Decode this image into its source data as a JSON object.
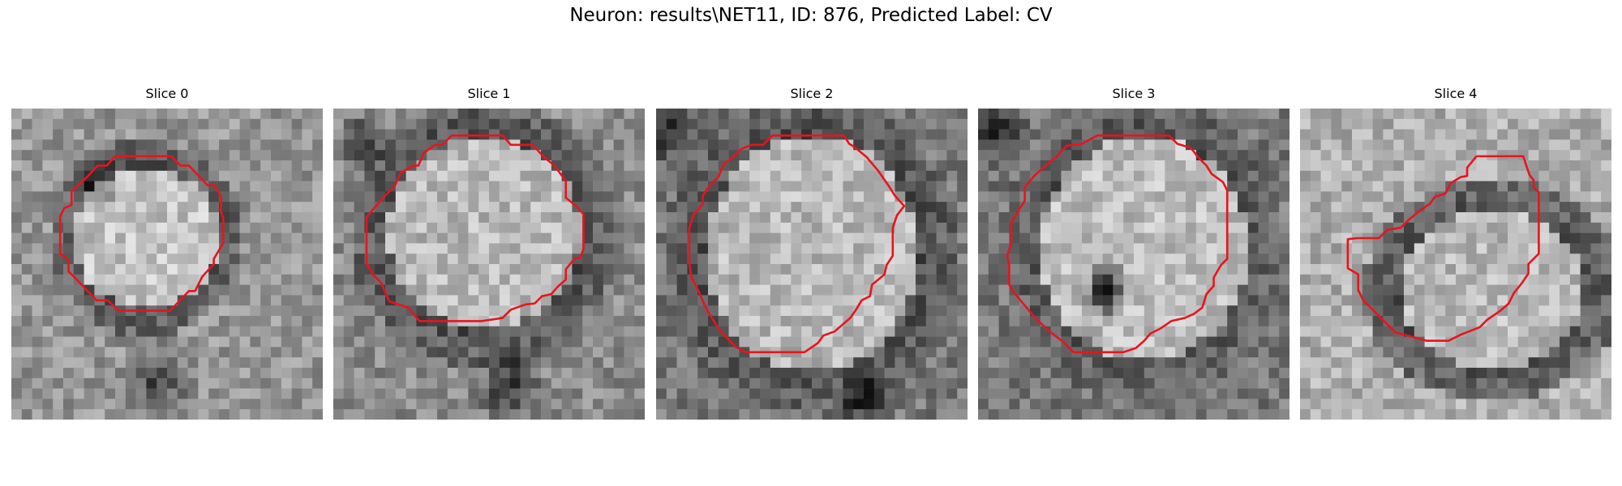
{
  "figure": {
    "title": "Neuron: results\\NET11, ID: 876, Predicted Label: CV"
  },
  "panels": [
    {
      "title": "Slice 0"
    },
    {
      "title": "Slice 1"
    },
    {
      "title": "Slice 2"
    },
    {
      "title": "Slice 3"
    },
    {
      "title": "Slice 4"
    }
  ],
  "colors": {
    "contour": "#e8141c",
    "background": "#ffffff"
  }
}
